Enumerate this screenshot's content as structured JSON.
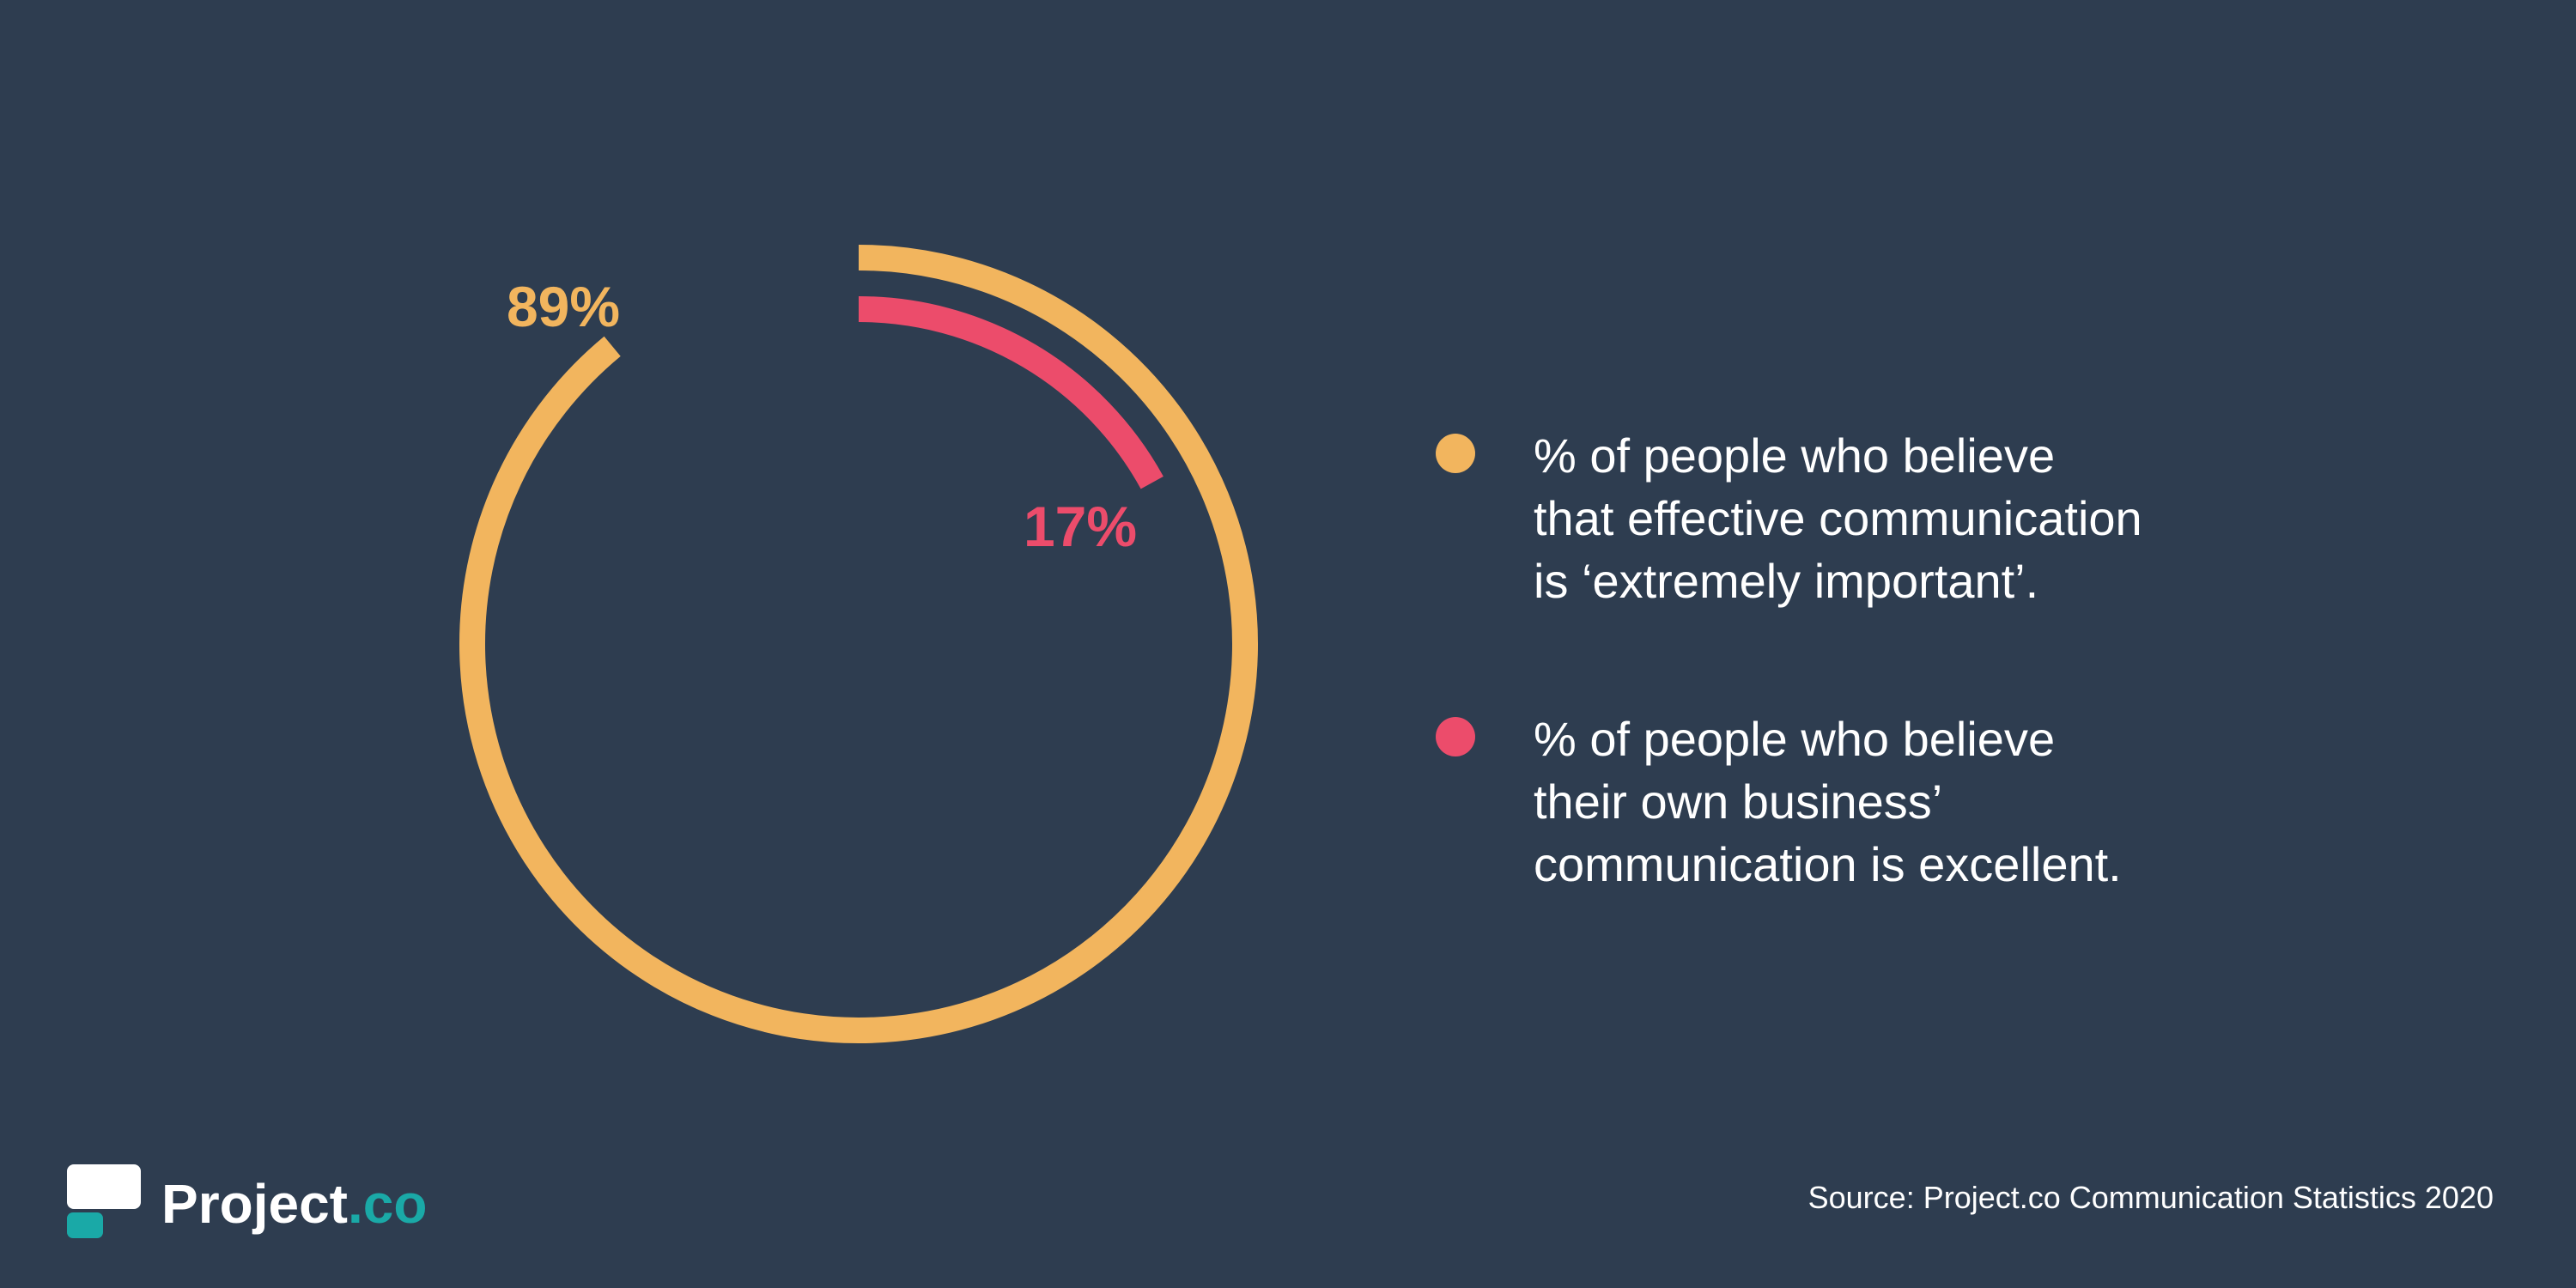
{
  "chart_data": {
    "type": "radial-bar",
    "series": [
      {
        "value": 89,
        "label": "89%",
        "color": "#f2b55e",
        "legend": [
          "% of people who believe",
          "that effective communication",
          "is ‘extremely important’."
        ]
      },
      {
        "value": 17,
        "label": "17%",
        "color": "#ec4c6b",
        "legend": [
          "% of people who believe",
          "their own business’",
          "communication is excellent."
        ]
      }
    ],
    "ylim": [
      0,
      100
    ]
  },
  "brand": {
    "name_main": "Project",
    "name_accent": ".co",
    "accent_color": "#1aa9a7"
  },
  "source": "Source: Project.co Communication Statistics 2020",
  "colors": {
    "background": "#2e3d50",
    "text": "#ffffff"
  }
}
